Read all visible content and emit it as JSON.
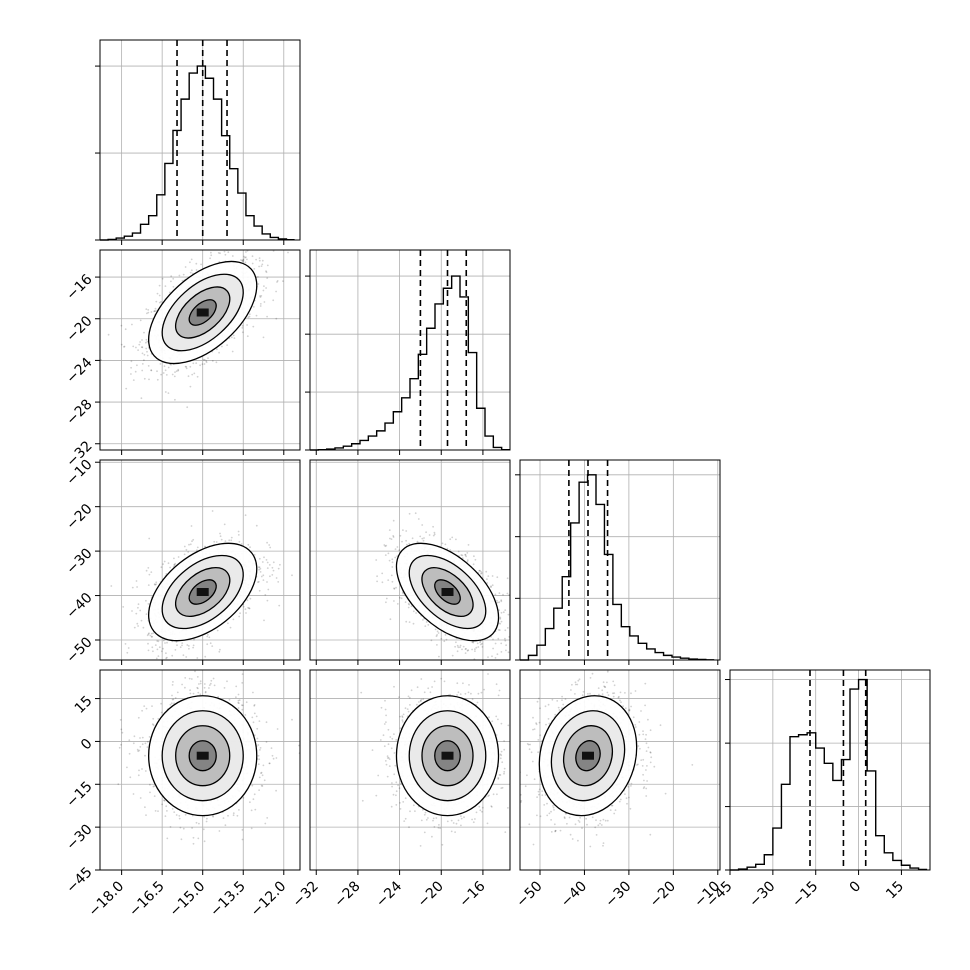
{
  "chart_data": {
    "type": "corner",
    "params": [
      {
        "range": [
          -18.8,
          -11.4
        ],
        "ticks": [
          -18.0,
          -16.5,
          -15.0,
          -13.5,
          -12.0
        ],
        "tick_labels": [
          "−18.0",
          "−16.5",
          "−15.0",
          "−13.5",
          "−12.0"
        ],
        "quantiles": [
          -15.95,
          -15.0,
          -14.1
        ],
        "hist": [
          [
            -18.8,
            -18.5,
            0
          ],
          [
            -18.5,
            -18.2,
            0.3
          ],
          [
            -18.2,
            -17.9,
            1.1
          ],
          [
            -17.9,
            -17.6,
            2.2
          ],
          [
            -17.6,
            -17.3,
            4
          ],
          [
            -17.3,
            -17.0,
            9
          ],
          [
            -17.0,
            -16.7,
            14
          ],
          [
            -16.7,
            -16.4,
            26
          ],
          [
            -16.4,
            -16.1,
            44
          ],
          [
            -16.1,
            -15.8,
            63
          ],
          [
            -15.8,
            -15.5,
            81
          ],
          [
            -15.5,
            -15.2,
            96
          ],
          [
            -15.2,
            -14.9,
            100
          ],
          [
            -14.9,
            -14.6,
            93
          ],
          [
            -14.6,
            -14.3,
            81
          ],
          [
            -14.3,
            -14.0,
            60
          ],
          [
            -14.0,
            -13.7,
            41
          ],
          [
            -13.7,
            -13.4,
            27
          ],
          [
            -13.4,
            -13.1,
            14
          ],
          [
            -13.1,
            -12.8,
            8
          ],
          [
            -12.8,
            -12.5,
            3.5
          ],
          [
            -12.5,
            -12.2,
            1.5
          ],
          [
            -12.2,
            -11.9,
            0.6
          ],
          [
            -11.9,
            -11.6,
            0.2
          ]
        ],
        "hist_ymax": 115,
        "hist_grid": [
          0,
          50,
          100
        ]
      },
      {
        "range": [
          -32.6,
          -13.4
        ],
        "ticks": [
          -32,
          -28,
          -24,
          -20,
          -16
        ],
        "tick_labels": [
          "−32",
          "−28",
          "−24",
          "−20",
          "−16"
        ],
        "quantiles": [
          -22.0,
          -19.4,
          -17.6
        ],
        "hist": [
          [
            -32.6,
            -31.8,
            0
          ],
          [
            -31.8,
            -31.0,
            0.2
          ],
          [
            -31.0,
            -30.2,
            0.5
          ],
          [
            -30.2,
            -29.4,
            1.2
          ],
          [
            -29.4,
            -28.6,
            2.2
          ],
          [
            -28.6,
            -27.8,
            3.6
          ],
          [
            -27.8,
            -27.0,
            5.5
          ],
          [
            -27.0,
            -26.2,
            8
          ],
          [
            -26.2,
            -25.4,
            11
          ],
          [
            -25.4,
            -24.6,
            15.5
          ],
          [
            -24.6,
            -23.8,
            22
          ],
          [
            -23.8,
            -23.0,
            30
          ],
          [
            -23.0,
            -22.2,
            41
          ],
          [
            -22.2,
            -21.4,
            55
          ],
          [
            -21.4,
            -20.6,
            70
          ],
          [
            -20.6,
            -19.8,
            84
          ],
          [
            -19.8,
            -19.0,
            93
          ],
          [
            -19.0,
            -18.2,
            100
          ],
          [
            -18.2,
            -17.4,
            88
          ],
          [
            -17.4,
            -16.6,
            56
          ],
          [
            -16.6,
            -15.8,
            24
          ],
          [
            -15.8,
            -15.0,
            8
          ],
          [
            -15.0,
            -14.2,
            1.5
          ],
          [
            -14.2,
            -13.4,
            0.2
          ]
        ],
        "hist_ymax": 115,
        "hist_grid": [
          0,
          33.3,
          66.6,
          100
        ]
      },
      {
        "range": [
          -54.5,
          -9.5
        ],
        "ticks": [
          -50,
          -40,
          -30,
          -20,
          -10
        ],
        "tick_labels": [
          "−50",
          "−40",
          "−30",
          "−20",
          "−10"
        ],
        "quantiles": [
          -43.5,
          -39.2,
          -34.8
        ],
        "hist": [
          [
            -54.5,
            -52.6,
            0
          ],
          [
            -52.6,
            -50.7,
            2.5
          ],
          [
            -50.7,
            -48.8,
            8
          ],
          [
            -48.8,
            -46.9,
            17
          ],
          [
            -46.9,
            -45.0,
            28
          ],
          [
            -45.0,
            -43.1,
            45
          ],
          [
            -43.1,
            -41.2,
            74
          ],
          [
            -41.2,
            -39.3,
            96
          ],
          [
            -39.3,
            -37.4,
            100
          ],
          [
            -37.4,
            -35.5,
            84
          ],
          [
            -35.5,
            -33.6,
            57
          ],
          [
            -33.6,
            -31.7,
            30
          ],
          [
            -31.7,
            -29.8,
            18
          ],
          [
            -29.8,
            -27.9,
            13
          ],
          [
            -27.9,
            -26.0,
            9
          ],
          [
            -26.0,
            -24.1,
            6
          ],
          [
            -24.1,
            -22.2,
            4
          ],
          [
            -22.2,
            -20.3,
            2.5
          ],
          [
            -20.3,
            -18.4,
            1.6
          ],
          [
            -18.4,
            -16.5,
            1
          ],
          [
            -16.5,
            -14.6,
            0.5
          ],
          [
            -14.6,
            -12.7,
            0.3
          ],
          [
            -12.7,
            -10.8,
            0.1
          ]
        ],
        "hist_ymax": 108,
        "hist_grid": [
          0,
          33.3,
          66.6,
          100
        ]
      },
      {
        "range": [
          -45,
          25
        ],
        "ticks": [
          -45,
          -30,
          -15,
          0,
          15
        ],
        "tick_labels": [
          "−45",
          "−30",
          "−15",
          "0",
          "15"
        ],
        "quantiles": [
          -17.0,
          -5.3,
          2.5
        ],
        "hist": [
          [
            -45,
            -42,
            0
          ],
          [
            -42,
            -39,
            0.5
          ],
          [
            -39,
            -36,
            1.5
          ],
          [
            -36,
            -33,
            3
          ],
          [
            -33,
            -30,
            8
          ],
          [
            -30,
            -27,
            22
          ],
          [
            -27,
            -24,
            45
          ],
          [
            -24,
            -21,
            70
          ],
          [
            -21,
            -18,
            71
          ],
          [
            -18,
            -15,
            72
          ],
          [
            -15,
            -12,
            64
          ],
          [
            -12,
            -9,
            56
          ],
          [
            -9,
            -6,
            47
          ],
          [
            -6,
            -3,
            58
          ],
          [
            -3,
            0,
            95
          ],
          [
            0,
            3,
            100
          ],
          [
            3,
            6,
            52
          ],
          [
            6,
            9,
            18
          ],
          [
            9,
            12,
            9
          ],
          [
            12,
            15,
            5
          ],
          [
            15,
            18,
            2.5
          ],
          [
            18,
            21,
            1
          ],
          [
            21,
            24,
            0.3
          ]
        ],
        "hist_ymax": 105,
        "hist_grid": [
          0,
          33.3,
          66.6,
          100
        ]
      }
    ],
    "axis_tick_labels": {
      "y_row1": [
        "−16",
        "−20",
        "−24",
        "−28",
        "−32"
      ],
      "y_row2": [
        "−10",
        "−20",
        "−30",
        "−40",
        "−50"
      ],
      "y_row3": [
        "15",
        "0",
        "−15",
        "−30",
        "−45"
      ]
    },
    "pair_stats": {
      "1-0": {
        "center": [
          -15.0,
          -19.4
        ],
        "cov": [
          [
            1.0,
            1.3
          ],
          [
            1.3,
            6.0
          ]
        ]
      },
      "2-0": {
        "center": [
          -15.0,
          -39.2
        ],
        "cov": [
          [
            1.0,
            2.6
          ],
          [
            2.6,
            30
          ]
        ]
      },
      "2-1": {
        "center": [
          -19.4,
          -39.2
        ],
        "cov": [
          [
            6.0,
            -7.0
          ],
          [
            -7.0,
            30
          ]
        ]
      },
      "3-0": {
        "center": [
          -15.0,
          -5.0
        ],
        "cov": [
          [
            1.0,
            0.0
          ],
          [
            0.0,
            110
          ]
        ]
      },
      "3-1": {
        "center": [
          -19.4,
          -5.0
        ],
        "cov": [
          [
            6.0,
            0.0
          ],
          [
            0.0,
            110
          ]
        ]
      },
      "3-2": {
        "center": [
          -39.2,
          -5.0
        ],
        "cov": [
          [
            30,
            8.0
          ],
          [
            8.0,
            110
          ]
        ]
      }
    },
    "grid": true,
    "colors": {
      "hist_line": "#000000",
      "grid": "#b0b0b0",
      "points": "#000000"
    }
  }
}
